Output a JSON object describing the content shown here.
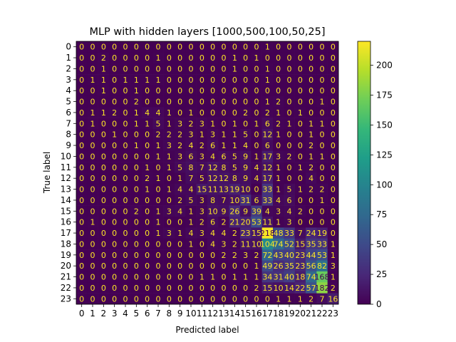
{
  "chart_data": {
    "type": "heatmap",
    "title": "MLP with hidden layers [1000,500,100,50,25]",
    "xlabel": "Predicted label",
    "ylabel": "True label",
    "x_ticks": [
      "0",
      "1",
      "2",
      "3",
      "4",
      "5",
      "6",
      "7",
      "8",
      "9",
      "10",
      "11",
      "12",
      "13",
      "14",
      "15",
      "16",
      "17",
      "18",
      "19",
      "20",
      "21",
      "22",
      "23"
    ],
    "y_ticks": [
      "0",
      "1",
      "2",
      "3",
      "4",
      "5",
      "6",
      "7",
      "8",
      "9",
      "10",
      "11",
      "12",
      "13",
      "14",
      "15",
      "16",
      "17",
      "18",
      "19",
      "20",
      "21",
      "22",
      "23"
    ],
    "colorbar": {
      "ticks": [
        0,
        25,
        50,
        75,
        100,
        125,
        150,
        175,
        200
      ],
      "range": [
        0,
        220
      ],
      "colormap": "viridis"
    },
    "text_colors": {
      "dark_cells": "#fde725",
      "bright_cells": "#440154"
    },
    "matrix": [
      [
        0,
        0,
        0,
        0,
        0,
        0,
        0,
        0,
        0,
        0,
        0,
        0,
        0,
        0,
        0,
        0,
        0,
        1,
        0,
        0,
        0,
        0,
        0,
        0
      ],
      [
        0,
        0,
        2,
        0,
        0,
        0,
        0,
        1,
        0,
        0,
        0,
        0,
        0,
        0,
        1,
        0,
        1,
        0,
        0,
        0,
        0,
        0,
        0,
        0
      ],
      [
        0,
        0,
        1,
        0,
        0,
        0,
        0,
        0,
        0,
        0,
        0,
        0,
        0,
        0,
        1,
        0,
        0,
        1,
        0,
        0,
        0,
        0,
        0,
        0
      ],
      [
        0,
        1,
        1,
        0,
        1,
        1,
        1,
        1,
        0,
        0,
        0,
        0,
        0,
        0,
        0,
        0,
        0,
        1,
        0,
        0,
        0,
        0,
        0,
        0
      ],
      [
        0,
        0,
        1,
        0,
        0,
        1,
        0,
        0,
        0,
        0,
        0,
        0,
        0,
        0,
        0,
        0,
        0,
        0,
        0,
        0,
        0,
        0,
        0,
        0
      ],
      [
        0,
        0,
        0,
        0,
        0,
        2,
        0,
        0,
        0,
        0,
        0,
        0,
        0,
        0,
        0,
        0,
        0,
        1,
        2,
        0,
        0,
        0,
        1,
        0
      ],
      [
        0,
        1,
        1,
        2,
        0,
        1,
        4,
        4,
        1,
        0,
        1,
        0,
        0,
        0,
        0,
        2,
        0,
        2,
        1,
        0,
        1,
        0,
        0,
        0
      ],
      [
        0,
        1,
        0,
        0,
        0,
        1,
        1,
        5,
        1,
        3,
        2,
        3,
        1,
        0,
        1,
        0,
        1,
        6,
        2,
        1,
        0,
        1,
        1,
        0
      ],
      [
        0,
        0,
        0,
        1,
        0,
        0,
        0,
        2,
        2,
        2,
        3,
        1,
        3,
        1,
        1,
        5,
        0,
        12,
        1,
        0,
        0,
        1,
        0,
        0
      ],
      [
        0,
        0,
        0,
        0,
        0,
        1,
        0,
        1,
        3,
        2,
        4,
        2,
        6,
        1,
        1,
        4,
        0,
        6,
        0,
        0,
        0,
        2,
        0,
        0
      ],
      [
        0,
        0,
        0,
        0,
        0,
        0,
        0,
        1,
        1,
        3,
        6,
        3,
        4,
        6,
        5,
        9,
        1,
        17,
        3,
        2,
        0,
        1,
        1,
        0
      ],
      [
        0,
        0,
        0,
        0,
        0,
        0,
        1,
        0,
        1,
        5,
        8,
        7,
        12,
        8,
        5,
        9,
        4,
        12,
        1,
        0,
        1,
        2,
        0,
        0
      ],
      [
        0,
        0,
        0,
        0,
        0,
        0,
        2,
        1,
        0,
        1,
        7,
        5,
        12,
        12,
        8,
        9,
        4,
        17,
        1,
        0,
        0,
        4,
        0,
        0
      ],
      [
        0,
        0,
        0,
        0,
        0,
        0,
        1,
        0,
        1,
        4,
        4,
        15,
        11,
        13,
        19,
        10,
        0,
        33,
        1,
        5,
        1,
        2,
        2,
        0
      ],
      [
        0,
        0,
        0,
        0,
        0,
        0,
        0,
        0,
        0,
        2,
        5,
        3,
        8,
        7,
        10,
        31,
        6,
        33,
        4,
        6,
        0,
        0,
        1,
        0
      ],
      [
        0,
        0,
        0,
        0,
        0,
        2,
        0,
        1,
        3,
        4,
        1,
        3,
        10,
        9,
        26,
        9,
        39,
        4,
        3,
        4,
        2,
        0,
        0,
        0
      ],
      [
        0,
        1,
        0,
        0,
        0,
        0,
        0,
        1,
        0,
        0,
        1,
        2,
        6,
        2,
        21,
        20,
        53,
        11,
        1,
        3,
        0,
        0,
        0,
        0
      ],
      [
        0,
        0,
        0,
        0,
        0,
        0,
        0,
        1,
        3,
        1,
        4,
        3,
        4,
        4,
        2,
        23,
        15,
        218,
        48,
        33,
        7,
        24,
        19,
        0
      ],
      [
        0,
        0,
        0,
        0,
        0,
        0,
        0,
        0,
        0,
        0,
        1,
        0,
        4,
        3,
        2,
        11,
        10,
        104,
        74,
        52,
        15,
        35,
        33,
        1
      ],
      [
        0,
        0,
        0,
        0,
        0,
        0,
        0,
        0,
        0,
        0,
        0,
        0,
        0,
        2,
        2,
        3,
        2,
        72,
        43,
        40,
        23,
        44,
        53,
        1
      ],
      [
        0,
        0,
        0,
        0,
        0,
        0,
        0,
        0,
        0,
        0,
        0,
        0,
        0,
        0,
        0,
        0,
        1,
        49,
        26,
        35,
        23,
        56,
        82,
        3
      ],
      [
        0,
        0,
        0,
        0,
        0,
        0,
        0,
        0,
        0,
        0,
        0,
        1,
        1,
        0,
        1,
        1,
        1,
        34,
        31,
        40,
        18,
        74,
        168,
        1
      ],
      [
        0,
        0,
        0,
        0,
        0,
        0,
        0,
        0,
        0,
        0,
        0,
        0,
        0,
        0,
        0,
        0,
        2,
        15,
        10,
        14,
        22,
        57,
        182,
        2
      ],
      [
        0,
        0,
        0,
        0,
        0,
        0,
        0,
        0,
        0,
        0,
        0,
        0,
        0,
        0,
        0,
        0,
        0,
        0,
        1,
        1,
        1,
        2,
        7,
        16
      ]
    ]
  }
}
